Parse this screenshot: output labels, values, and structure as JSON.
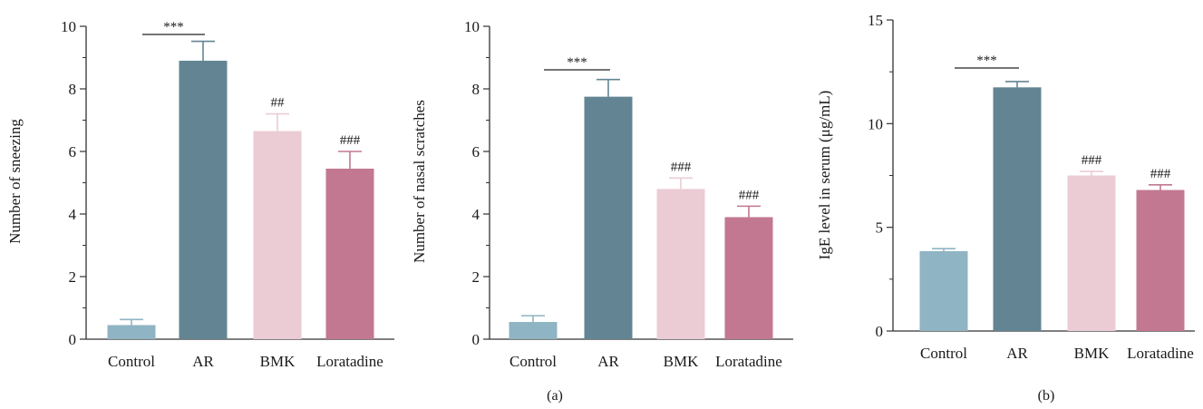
{
  "panel_labels": [
    "(a)",
    "(b)"
  ],
  "colors": [
    "#8fb4c3",
    "#638593",
    "#ebcbd4",
    "#c27890"
  ],
  "axis_color": "#333333",
  "chart_data": [
    {
      "type": "bar",
      "categories": [
        "Control",
        "AR",
        "BMK",
        "Loratadine"
      ],
      "values": [
        0.45,
        8.9,
        6.65,
        5.45
      ],
      "errors": [
        0.18,
        0.62,
        0.55,
        0.55
      ],
      "ylabel": "Number of sneezing",
      "ylim": [
        0,
        10
      ],
      "yticks": [
        0,
        2,
        4,
        6,
        8,
        10
      ],
      "minor_ticks": true,
      "bracket": {
        "from": 0,
        "to": 1,
        "label": "***"
      },
      "markers": [
        "",
        "",
        "##",
        "###"
      ]
    },
    {
      "type": "bar",
      "categories": [
        "Control",
        "AR",
        "BMK",
        "Loratadine"
      ],
      "values": [
        0.55,
        7.75,
        4.8,
        3.9
      ],
      "errors": [
        0.2,
        0.55,
        0.35,
        0.35
      ],
      "ylabel": "Number of nasal scratches",
      "ylim": [
        0,
        10
      ],
      "yticks": [
        0,
        2,
        4,
        6,
        8,
        10
      ],
      "minor_ticks": true,
      "bracket": {
        "from": 0,
        "to": 1,
        "label": "***"
      },
      "markers": [
        "",
        "",
        "###",
        "###"
      ]
    },
    {
      "type": "bar",
      "categories": [
        "Control",
        "AR",
        "BMK",
        "Loratadine"
      ],
      "values": [
        3.85,
        11.75,
        7.5,
        6.8
      ],
      "errors": [
        0.12,
        0.28,
        0.2,
        0.25
      ],
      "ylabel": "IgE level in serum (μg/mL)",
      "ylim": [
        0,
        15
      ],
      "yticks": [
        0,
        5,
        10,
        15
      ],
      "minor_ticks": true,
      "bracket": {
        "from": 0,
        "to": 1,
        "label": "***"
      },
      "markers": [
        "",
        "",
        "###",
        "###"
      ]
    }
  ]
}
